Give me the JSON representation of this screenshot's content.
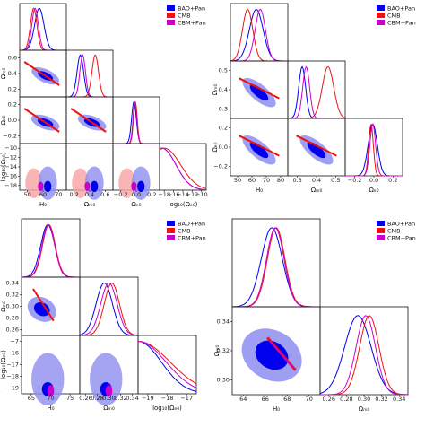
{
  "colors": {
    "bao": "#0000ee",
    "cmb": "#ee1111",
    "cbm": "#cc00cc",
    "bao_fill_outer": "#8d8df0",
    "cmb_fill_outer": "#f7a2a2",
    "cbm_fill_outer": "#e07ee0"
  },
  "chart_data": [
    {
      "type": "triangle",
      "legend": [
        "BAO+Pan",
        "CMB",
        "CBM+Pan"
      ],
      "params": [
        {
          "label": "H₀",
          "ticks": [
            "50",
            "60",
            "70"
          ]
        },
        {
          "label": "Ωₘ₀",
          "ticks": [
            "0.2",
            "0.4",
            "0.6"
          ]
        },
        {
          "label": "Ωₑ₀",
          "ticks": [
            "−0.2",
            "0.0",
            "0.2"
          ]
        },
        {
          "label": "log₁₀(Ωₑ₀)",
          "ticks": [
            "−18",
            "−16",
            "−14",
            "−12",
            "−10"
          ]
        }
      ],
      "row_labels": [
        "Ωₘ₀",
        "Ωₑ₀",
        "log₁₀(Ωₑ₀)"
      ]
    },
    {
      "type": "triangle",
      "legend": [
        "BAO+Pan",
        "CMB",
        "CBM+Pan"
      ],
      "params": [
        {
          "label": "H₀",
          "ticks": [
            "50",
            "60",
            "70",
            "80"
          ]
        },
        {
          "label": "Ωₘ₀",
          "ticks": [
            "0.3",
            "0.4",
            "0.5"
          ]
        },
        {
          "label": "Ωₑ₀",
          "ticks": [
            "−0.2",
            "0.0",
            "0.2"
          ]
        }
      ],
      "row_labels": [
        "Ωₘ₀",
        "Ωₑ₀"
      ]
    },
    {
      "type": "triangle",
      "legend": [
        "BAO+Pan",
        "CMB",
        "CBM+Pan"
      ],
      "params": [
        {
          "label": "H₀",
          "ticks": [
            "65",
            "70",
            "75"
          ]
        },
        {
          "label": "Ωₘ₀",
          "ticks": [
            "0.26",
            "0.28",
            "0.30",
            "0.32",
            "0.34"
          ]
        },
        {
          "label": "log₁₀(Ωₑ₀)",
          "ticks": [
            "−19",
            "−18",
            "−17"
          ]
        }
      ],
      "row_labels": [
        "Ωₘ₀",
        "log₁₀(Ωₑ₀)"
      ],
      "row_ticks": [
        [
          "0.26",
          "0.28",
          "0.30",
          "0.32",
          "0.34"
        ],
        [
          "−19",
          "−18",
          "−17",
          "−16",
          "−7"
        ]
      ]
    },
    {
      "type": "triangle",
      "legend": [
        "BAO+Pan",
        "CMB",
        "CBM+Pan"
      ],
      "params": [
        {
          "label": "H₀",
          "ticks": [
            "64",
            "66",
            "68",
            "70"
          ]
        },
        {
          "label": "Ωₘ₀",
          "ticks": [
            "0.26",
            "0.28",
            "0.30",
            "0.32",
            "0.34"
          ]
        }
      ],
      "row_labels": [
        "Ωₘ₀"
      ],
      "row_ticks": [
        [
          "0.30",
          "0.32",
          "0.34"
        ]
      ]
    }
  ]
}
